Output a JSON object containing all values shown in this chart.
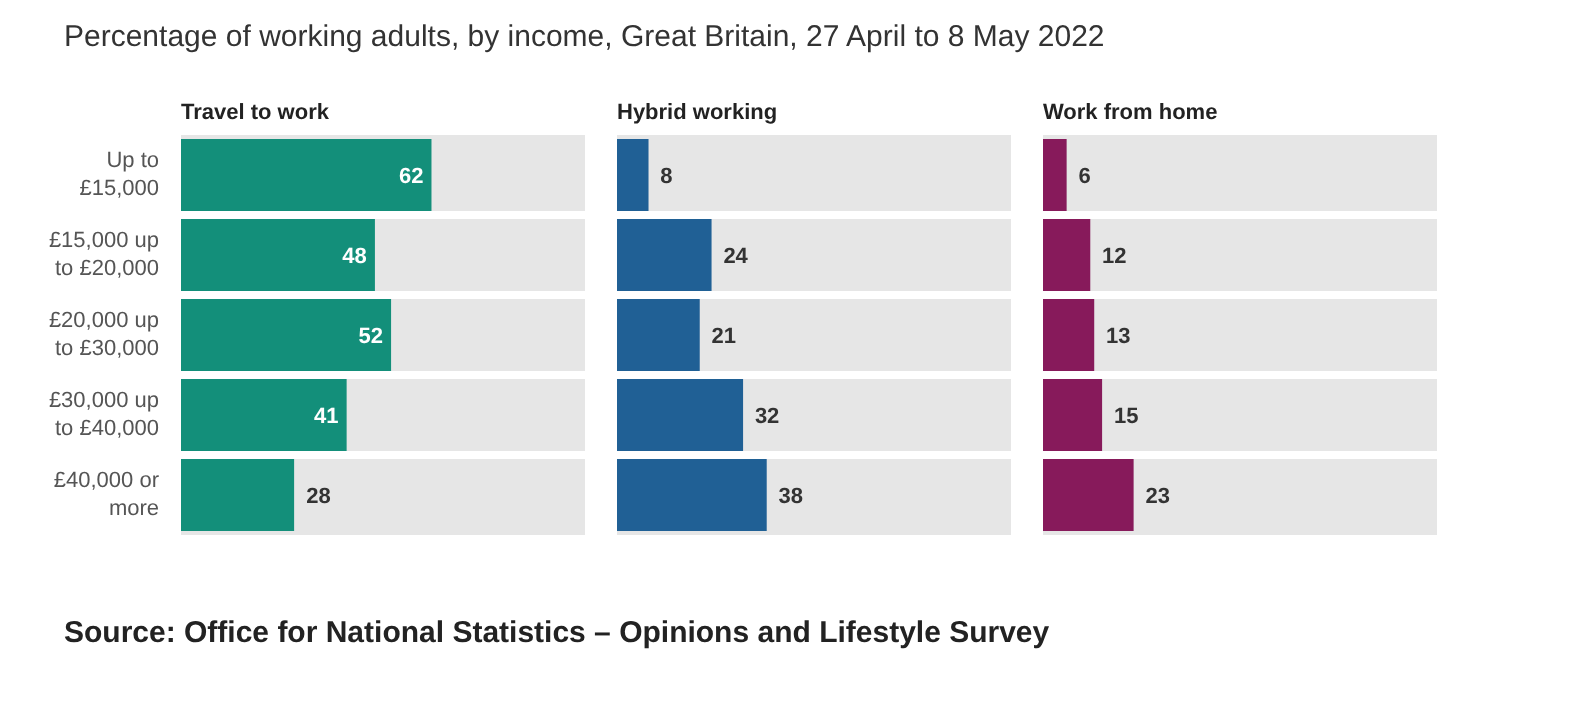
{
  "chart_data": [
    {
      "type": "bar",
      "orientation": "horizontal",
      "title": "Travel to work",
      "categories": [
        "Up to\n£15,000",
        "£15,000 up\nto £20,000",
        "£20,000 up\nto £30,000",
        "£30,000 up\nto £40,000",
        "£40,000 or\nmore"
      ],
      "values": [
        62,
        48,
        52,
        41,
        28
      ],
      "color": "#138f7a",
      "xlim": [
        0,
        100
      ],
      "data_labels": true,
      "tick_labels": "y",
      "annotations": [
        "Percentage of working adults, by income, Great Britain, 27 April to 8 May 2022",
        "Source: Office for National Statistics – Opinions and Lifestyle Survey"
      ]
    },
    {
      "type": "bar",
      "orientation": "horizontal",
      "title": "Hybrid working",
      "categories": [
        null,
        null,
        null,
        null,
        null
      ],
      "values": [
        8,
        24,
        21,
        32,
        38
      ],
      "color": "#206095",
      "xlim": [
        0,
        100
      ],
      "data_labels": true,
      "tick_labels": false
    },
    {
      "type": "bar",
      "orientation": "horizontal",
      "title": "Work from home",
      "categories": [
        null,
        null,
        null,
        null,
        null
      ],
      "values": [
        6,
        12,
        13,
        15,
        23
      ],
      "color": "#871a5b",
      "xlim": [
        0,
        100
      ],
      "data_labels": true,
      "tick_labels": false
    }
  ]
}
